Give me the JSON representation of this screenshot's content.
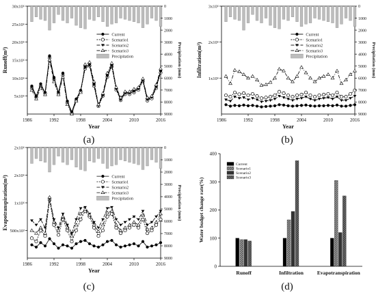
{
  "figure_labels": [
    "(a)",
    "(b)",
    "(c)",
    "(d)"
  ],
  "legend_standard": [
    "Current",
    "Scenario1",
    "Scenario2",
    "Scenario3",
    "Precipitation"
  ],
  "legend_bar": [
    "Current",
    "Scenario1",
    "Scenario2",
    "Scenario3"
  ],
  "chart_data": [
    {
      "type": "line",
      "panel": "(a)",
      "xlabel": "Year",
      "ylabel": "Runoff(m³)",
      "y2label": "Precipitation (mm)",
      "xticks": [
        "1986",
        "1992",
        "1998",
        "2004",
        "2010",
        "2016"
      ],
      "yticks": [
        "5x10⁶",
        "10x10⁶",
        "15x10⁶",
        "20x10⁶",
        "25x10⁶",
        "30x10⁶"
      ],
      "y2ticks": [
        "0",
        "1000",
        "2000",
        "3000",
        "4000",
        "5000",
        "6000",
        "7000",
        "8000",
        "9000"
      ],
      "xlim": [
        1986,
        2016
      ],
      "ylim": [
        5000000,
        30000000
      ],
      "y2lim": [
        0,
        9000
      ],
      "x": [
        1987,
        1988,
        1989,
        1990,
        1991,
        1992,
        1993,
        1994,
        1995,
        1996,
        1997,
        1998,
        1999,
        2000,
        2001,
        2002,
        2003,
        2004,
        2005,
        2006,
        2007,
        2008,
        2009,
        2010,
        2011,
        2012,
        2013,
        2014,
        2015,
        2016
      ],
      "series": [
        {
          "name": "Current",
          "values": [
            11.5,
            9.2,
            12.0,
            10.0,
            18.5,
            13.5,
            10.0,
            14.5,
            8.0,
            5.5,
            8.5,
            10.5,
            16.0,
            16.5,
            12.0,
            7.0,
            9.5,
            14.0,
            16.5,
            11.0,
            8.5,
            10.0,
            10.0,
            10.5,
            11.0,
            13.0,
            8.5,
            9.0,
            11.5,
            15.0
          ]
        },
        {
          "name": "Scenario1",
          "values": [
            11.0,
            8.9,
            11.5,
            9.8,
            18.0,
            13.0,
            9.8,
            14.0,
            7.6,
            5.2,
            8.2,
            10.2,
            15.5,
            16.2,
            11.5,
            6.8,
            9.2,
            13.6,
            16.0,
            10.6,
            8.2,
            9.6,
            9.6,
            10.0,
            10.6,
            12.6,
            8.1,
            8.6,
            11.0,
            14.6
          ]
        },
        {
          "name": "Scenario2",
          "values": [
            11.2,
            9.0,
            11.8,
            9.9,
            18.2,
            13.2,
            9.9,
            14.2,
            7.8,
            5.3,
            8.3,
            10.3,
            15.7,
            16.3,
            11.7,
            6.9,
            9.3,
            13.8,
            16.2,
            10.8,
            8.3,
            9.8,
            9.8,
            10.2,
            10.8,
            12.8,
            8.3,
            8.8,
            11.2,
            14.8
          ]
        },
        {
          "name": "Scenario3",
          "values": [
            10.5,
            8.5,
            11.0,
            9.5,
            17.5,
            12.5,
            9.5,
            13.5,
            7.2,
            5.0,
            8.0,
            10.0,
            16.5,
            17.0,
            12.5,
            7.2,
            9.8,
            14.5,
            16.8,
            11.2,
            8.8,
            10.2,
            10.2,
            10.8,
            11.2,
            13.2,
            8.8,
            9.2,
            11.8,
            15.5
          ]
        }
      ],
      "precipitation": [
        1300,
        900,
        1100,
        1200,
        2000,
        1400,
        700,
        1200,
        1400,
        1000,
        1600,
        1800,
        1900,
        1100,
        1200,
        900,
        1300,
        1700,
        1500,
        1400,
        1000,
        1100,
        1200,
        1300,
        1400,
        1800,
        1500,
        1000,
        1200,
        1700
      ],
      "value_scale": 1000000
    },
    {
      "type": "line",
      "panel": "(b)",
      "xlabel": "Year",
      "ylabel": "Infiltration(m³)",
      "y2label": "Precipitation (mm)",
      "xticks": [
        "1986",
        "1992",
        "1998",
        "2004",
        "2010",
        "2016"
      ],
      "yticks": [
        "1x10⁶",
        "2x10⁶",
        "3x10⁶"
      ],
      "y2ticks": [
        "0",
        "1000",
        "2000",
        "3000",
        "4000",
        "5000",
        "6000",
        "7000",
        "8000",
        "9000"
      ],
      "xlim": [
        1986,
        2016
      ],
      "ylim": [
        0,
        3000000
      ],
      "y2lim": [
        0,
        9000
      ],
      "x": [
        1987,
        1988,
        1989,
        1990,
        1991,
        1992,
        1993,
        1994,
        1995,
        1996,
        1997,
        1998,
        1999,
        2000,
        2001,
        2002,
        2003,
        2004,
        2005,
        2006,
        2007,
        2008,
        2009,
        2010,
        2011,
        2012,
        2013,
        2014,
        2015,
        2016
      ],
      "series": [
        {
          "name": "Current",
          "values": [
            0.26,
            0.22,
            0.24,
            0.23,
            0.25,
            0.23,
            0.24,
            0.22,
            0.2,
            0.21,
            0.22,
            0.23,
            0.26,
            0.25,
            0.23,
            0.22,
            0.23,
            0.24,
            0.25,
            0.23,
            0.22,
            0.23,
            0.23,
            0.24,
            0.23,
            0.25,
            0.22,
            0.22,
            0.24,
            0.26
          ]
        },
        {
          "name": "Scenario1",
          "values": [
            0.52,
            0.48,
            0.6,
            0.55,
            0.58,
            0.52,
            0.56,
            0.5,
            0.44,
            0.46,
            0.48,
            0.52,
            0.62,
            0.58,
            0.52,
            0.48,
            0.52,
            0.54,
            0.6,
            0.52,
            0.48,
            0.52,
            0.54,
            0.56,
            0.52,
            0.6,
            0.48,
            0.48,
            0.56,
            0.66
          ]
        },
        {
          "name": "Scenario2",
          "values": [
            0.4,
            0.36,
            0.48,
            0.44,
            0.46,
            0.4,
            0.44,
            0.4,
            0.34,
            0.36,
            0.38,
            0.42,
            0.5,
            0.46,
            0.42,
            0.38,
            0.42,
            0.44,
            0.48,
            0.42,
            0.38,
            0.42,
            0.44,
            0.46,
            0.42,
            0.48,
            0.38,
            0.38,
            0.44,
            0.5
          ]
        },
        {
          "name": "Scenario3",
          "values": [
            1.05,
            0.85,
            1.22,
            1.18,
            1.1,
            1.0,
            1.05,
            0.95,
            0.8,
            0.82,
            0.88,
            1.0,
            1.25,
            1.2,
            1.0,
            0.9,
            1.05,
            1.3,
            1.15,
            1.0,
            0.9,
            1.0,
            1.05,
            1.1,
            1.0,
            1.2,
            0.85,
            0.95,
            1.1,
            1.2
          ]
        }
      ],
      "precipitation": [
        1300,
        900,
        1100,
        1200,
        2000,
        1400,
        700,
        1200,
        1400,
        1000,
        1600,
        1800,
        1900,
        1100,
        1200,
        900,
        1300,
        1700,
        1500,
        1400,
        1000,
        1100,
        1200,
        1300,
        1400,
        1800,
        1500,
        1000,
        1200,
        1700
      ],
      "value_scale": 1000000
    },
    {
      "type": "line",
      "panel": "(c)",
      "xlabel": "Year",
      "ylabel": "Evapotranspiration(m³)",
      "y2label": "Precipitation (mm)",
      "xticks": [
        "1986",
        "1992",
        "1998",
        "2004",
        "2010",
        "2016"
      ],
      "yticks": [
        "500x10³",
        "1x10⁶",
        "2x10⁶",
        "2x10⁶"
      ],
      "y2ticks": [
        "0",
        "1000",
        "2000",
        "3000",
        "4000",
        "5000",
        "6000",
        "7000",
        "8000",
        "9000"
      ],
      "xlim": [
        1986,
        2016
      ],
      "ylim": [
        0,
        2000000
      ],
      "y2lim": [
        0,
        9000
      ],
      "x": [
        1987,
        1988,
        1989,
        1990,
        1991,
        1992,
        1993,
        1994,
        1995,
        1996,
        1997,
        1998,
        1999,
        2000,
        2001,
        2002,
        2003,
        2004,
        2005,
        2006,
        2007,
        2008,
        2009,
        2010,
        2011,
        2012,
        2013,
        2014,
        2015,
        2016
      ],
      "series": [
        {
          "name": "Current",
          "values": [
            0.24,
            0.2,
            0.28,
            0.22,
            0.35,
            0.26,
            0.18,
            0.24,
            0.22,
            0.18,
            0.26,
            0.3,
            0.32,
            0.26,
            0.22,
            0.2,
            0.24,
            0.3,
            0.32,
            0.24,
            0.2,
            0.22,
            0.24,
            0.26,
            0.22,
            0.3,
            0.2,
            0.22,
            0.24,
            0.28
          ]
        },
        {
          "name": "Scenario1",
          "values": [
            0.36,
            0.3,
            0.5,
            0.4,
            1.05,
            0.6,
            0.42,
            0.7,
            0.5,
            0.3,
            0.5,
            0.7,
            0.85,
            0.75,
            0.55,
            0.4,
            0.5,
            0.75,
            0.8,
            0.55,
            0.45,
            0.5,
            0.55,
            0.6,
            0.55,
            0.7,
            0.45,
            0.5,
            0.6,
            0.7
          ]
        },
        {
          "name": "Scenario2",
          "values": [
            0.68,
            0.6,
            0.7,
            0.55,
            1.08,
            0.7,
            0.55,
            0.8,
            0.6,
            0.45,
            0.7,
            0.9,
            0.92,
            0.8,
            0.65,
            0.55,
            0.7,
            0.9,
            0.92,
            0.7,
            0.6,
            0.65,
            0.7,
            0.75,
            0.7,
            0.85,
            0.6,
            0.65,
            0.75,
            0.85
          ]
        },
        {
          "name": "Scenario3",
          "values": [
            0.5,
            0.45,
            0.55,
            0.45,
            1.1,
            0.65,
            0.5,
            0.75,
            0.55,
            0.4,
            0.6,
            0.8,
            0.88,
            0.78,
            0.6,
            0.48,
            0.6,
            0.82,
            0.85,
            0.6,
            0.5,
            0.55,
            0.6,
            0.65,
            0.6,
            0.78,
            0.52,
            0.55,
            0.65,
            0.8
          ]
        }
      ],
      "precipitation": [
        1300,
        900,
        1100,
        1200,
        2000,
        1400,
        700,
        1200,
        1400,
        1000,
        1600,
        1800,
        1900,
        1100,
        1200,
        900,
        1300,
        1700,
        1500,
        1400,
        1000,
        1100,
        1200,
        1300,
        1400,
        1800,
        1500,
        1000,
        1200,
        1700
      ],
      "value_scale": 1000000
    },
    {
      "type": "bar",
      "panel": "(d)",
      "ylabel": "Water budget change rate(%)",
      "yticks": [
        "0",
        "100",
        "200",
        "300",
        "400"
      ],
      "ylim": [
        0,
        400
      ],
      "categories": [
        "Runoff",
        "Infiltration",
        "Evapotranspiration"
      ],
      "series": [
        {
          "name": "Current",
          "values": [
            100,
            100,
            100
          ]
        },
        {
          "name": "Scenario1",
          "values": [
            95,
            165,
            305
          ]
        },
        {
          "name": "Scenario2",
          "values": [
            95,
            195,
            120
          ]
        },
        {
          "name": "Scenario3",
          "values": [
            90,
            375,
            250
          ]
        }
      ]
    }
  ]
}
